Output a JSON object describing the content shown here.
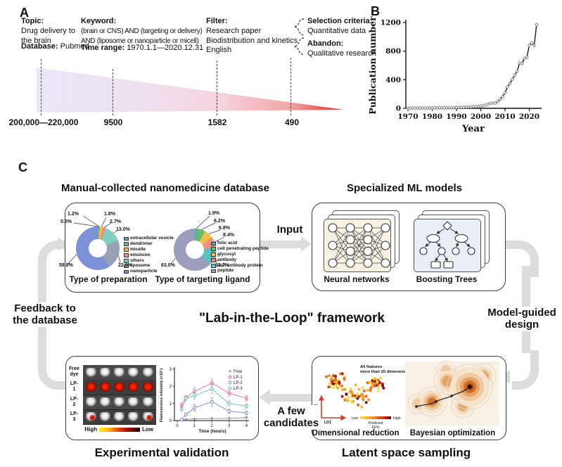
{
  "panel_a": {
    "label": "A",
    "topic": {
      "label": "Topic:",
      "value": "Drug delivery to the brain"
    },
    "database": {
      "label": "Database:",
      "value": "Pubmed"
    },
    "keyword": {
      "label": "Keyword:",
      "lines": [
        "(brain or CNS) AND (targeting or delivery)",
        "AND (liposome or nanoparticle or micell)"
      ]
    },
    "time_range": {
      "label": "Time range:",
      "value": "1970.1.1—2020.12.31"
    },
    "filter": {
      "label": "Filter:",
      "lines": [
        "Research paper",
        "Biodistribution and kinetics",
        "English"
      ]
    },
    "selection": {
      "label": "Selection criteria:",
      "value": "Quantitative data"
    },
    "abandon": {
      "label": "Abandon:",
      "value": "Qualitative research"
    },
    "counts": [
      "200,000—220,000",
      "9500",
      "1582",
      "490"
    ]
  },
  "panel_b": {
    "label": "B"
  },
  "panel_c": {
    "label": "C",
    "database_title": "Manual-collected nanomedicine database",
    "ml_title": "Specialized ML models",
    "center_title": "\"Lab-in-the-Loop\" framework",
    "flow": {
      "input": "Input",
      "model_guided": "Model-guided design",
      "candidates": "A few candidates",
      "feedback": "Feedback to the database"
    },
    "ml": {
      "nn_caption": "Neural networks",
      "bt_caption": "Boosting Trees"
    },
    "validation": {
      "title": "Experimental validation",
      "rows": [
        {
          "label": "Free dye",
          "style": "white"
        },
        {
          "label": "LP-1",
          "style": "red"
        },
        {
          "label": "LP-2",
          "style": "white"
        },
        {
          "label": "LP-3",
          "style": "mixed"
        }
      ],
      "scale": {
        "high": "High",
        "low": "Low"
      }
    },
    "latent": {
      "title": "Latent space sampling",
      "dim_caption": "Dimensional reduction",
      "bayes_caption": "Bayesian optimization",
      "annotation": [
        "All features",
        "more than 20 dimensions"
      ],
      "ld1": "LD1",
      "ld2": "LD2",
      "cbar": {
        "low": "Low",
        "high": "High",
        "label1": "Predicted",
        "label2": "EE%"
      }
    }
  },
  "chart_data": [
    {
      "id": "publications",
      "type": "line",
      "title": "",
      "xlabel": "Year",
      "ylabel": "Publication number",
      "xlim": [
        1968,
        2025
      ],
      "ylim": [
        0,
        1200
      ],
      "xticks": [
        1970,
        1980,
        1990,
        2000,
        2010,
        2020
      ],
      "yticks": [
        0,
        400,
        800,
        1200
      ],
      "x": [
        1970,
        1971,
        1972,
        1973,
        1974,
        1975,
        1976,
        1977,
        1978,
        1979,
        1980,
        1981,
        1982,
        1983,
        1984,
        1985,
        1986,
        1987,
        1988,
        1989,
        1990,
        1991,
        1992,
        1993,
        1994,
        1995,
        1996,
        1997,
        1998,
        1999,
        2000,
        2001,
        2002,
        2003,
        2004,
        2005,
        2006,
        2007,
        2008,
        2009,
        2010,
        2011,
        2012,
        2013,
        2014,
        2015,
        2016,
        2017,
        2018,
        2019,
        2020,
        2021,
        2022,
        2023
      ],
      "values": [
        2,
        2,
        3,
        2,
        3,
        4,
        3,
        4,
        5,
        4,
        5,
        5,
        6,
        6,
        7,
        8,
        8,
        9,
        10,
        10,
        12,
        13,
        14,
        15,
        16,
        18,
        20,
        22,
        25,
        28,
        32,
        38,
        45,
        55,
        70,
        75,
        72,
        95,
        125,
        165,
        215,
        300,
        345,
        405,
        465,
        520,
        635,
        625,
        700,
        715,
        880,
        915,
        875,
        1170
      ],
      "marker": "diamond",
      "line_color": "#1a1a1a",
      "grid": false
    },
    {
      "id": "fluorescence",
      "type": "line",
      "title": "",
      "xlabel": "Time (hours)",
      "ylabel": "Fluorescence intensity (×10⁷)",
      "xlim": [
        0,
        4.3
      ],
      "ylim": [
        0,
        3
      ],
      "xticks": [
        0,
        1,
        2,
        3,
        4
      ],
      "yticks": [
        0,
        1,
        2,
        3
      ],
      "x": [
        0.25,
        0.5,
        1,
        2,
        3,
        4
      ],
      "legend_position": "top-right",
      "series": [
        {
          "name": "Free",
          "color": "#8a8a8a",
          "marker": "plus",
          "values": [
            0.05,
            0.07,
            0.1,
            0.12,
            0.13,
            0.18
          ],
          "errors": [
            0.02,
            0.02,
            0.03,
            0.05,
            0.05,
            0.06
          ]
        },
        {
          "name": "LP-1",
          "color": "#ee6a9b",
          "marker": "star",
          "values": [
            0.9,
            1.35,
            1.7,
            2.2,
            1.6,
            1.3
          ],
          "errors": [
            0.12,
            0.12,
            0.2,
            0.22,
            0.2,
            0.15
          ]
        },
        {
          "name": "LP-2",
          "color": "#7081d6",
          "marker": "circle",
          "values": [
            0.05,
            0.35,
            0.75,
            1.1,
            0.55,
            0.45
          ],
          "errors": [
            0.03,
            0.08,
            0.2,
            0.25,
            0.12,
            0.1
          ]
        },
        {
          "name": "LP-3",
          "color": "#62c49b",
          "marker": "diamond",
          "values": [
            0.65,
            1.3,
            1.45,
            1.85,
            1.0,
            0.85
          ],
          "errors": [
            0.1,
            0.15,
            0.22,
            0.25,
            0.15,
            0.12
          ]
        }
      ]
    },
    {
      "id": "type_of_preparation",
      "type": "pie",
      "title": "Type of preparation",
      "slices": [
        {
          "label": "extracellular vesicle",
          "value": 0.5,
          "color": "#4fb0bf"
        },
        {
          "label": "dendrimer",
          "value": 1.2,
          "color": "#67bd6f"
        },
        {
          "label": "micelle",
          "value": 1.8,
          "color": "#f3c04b"
        },
        {
          "label": "emulsion",
          "value": 2.7,
          "color": "#f2907c"
        },
        {
          "label": "others",
          "value": 13.0,
          "color": "#82cfc0"
        },
        {
          "label": "liposome",
          "value": 22.0,
          "color": "#98a0b5"
        },
        {
          "label": "nanoparticle",
          "value": 58.8,
          "color": "#7e91d8"
        }
      ]
    },
    {
      "id": "type_of_targeting_ligand",
      "type": "pie",
      "title": "Type of targeting ligand",
      "slices": [
        {
          "label": "folic acid",
          "value": 1.9,
          "color": "#4fb0bf"
        },
        {
          "label": "cell penetrating peptide",
          "value": 6.2,
          "color": "#67bd6f"
        },
        {
          "label": "glycosyl",
          "value": 6.8,
          "color": "#f3c04b"
        },
        {
          "label": "antibody",
          "value": 8.4,
          "color": "#f2907c"
        },
        {
          "label": "non antibody protein",
          "value": 13.7,
          "color": "#59c3c3"
        },
        {
          "label": "peptide",
          "value": 63.0,
          "color": "#9b9dbb"
        }
      ]
    }
  ]
}
